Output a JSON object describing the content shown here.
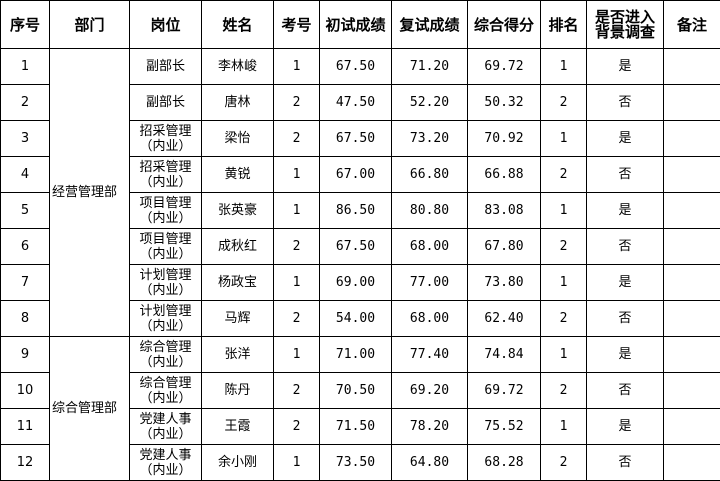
{
  "headers": [
    "序号",
    "部门",
    "岗位",
    "姓名",
    "考号",
    "初试成绩",
    "复试成绩",
    "综合得分",
    "排名",
    "是否进入背景调查",
    "备注"
  ],
  "departments": [
    "经营管理部",
    "综合管理部"
  ],
  "rows": [
    {
      "no": "1",
      "pos": "副部长",
      "name": "李林峻",
      "exam": "1",
      "first": "67.50",
      "second": "71.20",
      "total": "69.72",
      "rank": "1",
      "bg": "是",
      "note": ""
    },
    {
      "no": "2",
      "pos": "副部长",
      "name": "唐林",
      "exam": "2",
      "first": "47.50",
      "second": "52.20",
      "total": "50.32",
      "rank": "2",
      "bg": "否",
      "note": ""
    },
    {
      "no": "3",
      "pos": "招采管理（内业）",
      "name": "梁怡",
      "exam": "2",
      "first": "67.50",
      "second": "73.20",
      "total": "70.92",
      "rank": "1",
      "bg": "是",
      "note": ""
    },
    {
      "no": "4",
      "pos": "招采管理（内业）",
      "name": "黄锐",
      "exam": "1",
      "first": "67.00",
      "second": "66.80",
      "total": "66.88",
      "rank": "2",
      "bg": "否",
      "note": ""
    },
    {
      "no": "5",
      "pos": "项目管理（内业）",
      "name": "张英豪",
      "exam": "1",
      "first": "86.50",
      "second": "80.80",
      "total": "83.08",
      "rank": "1",
      "bg": "是",
      "note": ""
    },
    {
      "no": "6",
      "pos": "项目管理（内业）",
      "name": "成秋红",
      "exam": "2",
      "first": "67.50",
      "second": "68.00",
      "total": "67.80",
      "rank": "2",
      "bg": "否",
      "note": ""
    },
    {
      "no": "7",
      "pos": "计划管理（内业）",
      "name": "杨政宝",
      "exam": "1",
      "first": "69.00",
      "second": "77.00",
      "total": "73.80",
      "rank": "1",
      "bg": "是",
      "note": ""
    },
    {
      "no": "8",
      "pos": "计划管理（内业）",
      "name": "马辉",
      "exam": "2",
      "first": "54.00",
      "second": "68.00",
      "total": "62.40",
      "rank": "2",
      "bg": "否",
      "note": ""
    },
    {
      "no": "9",
      "pos": "综合管理（内业）",
      "name": "张洋",
      "exam": "1",
      "first": "71.00",
      "second": "77.40",
      "total": "74.84",
      "rank": "1",
      "bg": "是",
      "note": ""
    },
    {
      "no": "10",
      "pos": "综合管理（内业）",
      "name": "陈丹",
      "exam": "2",
      "first": "70.50",
      "second": "69.20",
      "total": "69.72",
      "rank": "2",
      "bg": "否",
      "note": ""
    },
    {
      "no": "11",
      "pos": "党建人事（内业）",
      "name": "王霞",
      "exam": "2",
      "first": "71.50",
      "second": "78.20",
      "total": "75.52",
      "rank": "1",
      "bg": "是",
      "note": ""
    },
    {
      "no": "12",
      "pos": "党建人事（内业）",
      "name": "余小刚",
      "exam": "1",
      "first": "73.50",
      "second": "64.80",
      "total": "68.28",
      "rank": "2",
      "bg": "否",
      "note": ""
    }
  ]
}
